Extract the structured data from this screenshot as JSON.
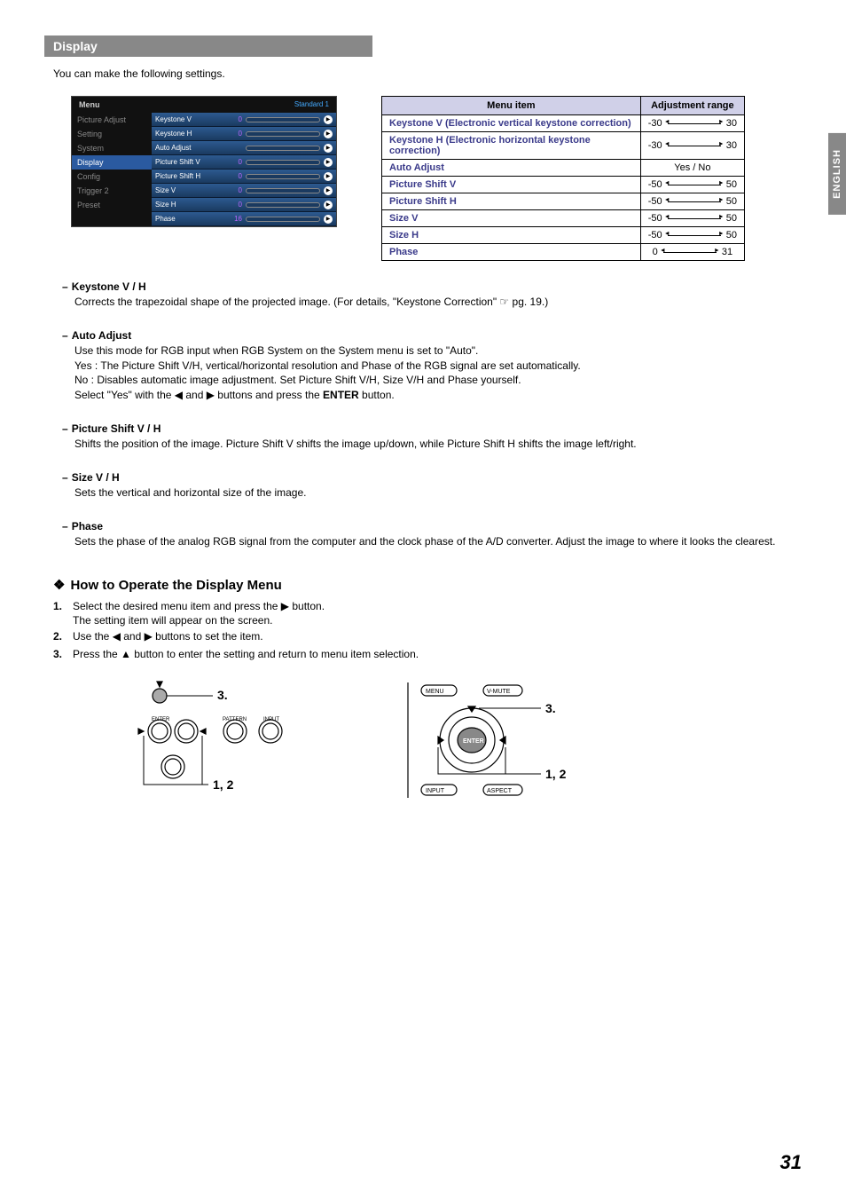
{
  "sideTab": "ENGLISH",
  "sectionTitle": "Display",
  "intro": "You can make the following settings.",
  "menuShot": {
    "title": "Menu",
    "mode": "Standard 1",
    "leftItems": [
      "Picture Adjust",
      "Setting",
      "System",
      "Display",
      "Config",
      "Trigger 2",
      "Preset"
    ],
    "activeIndex": 3,
    "rows": [
      {
        "label": "Keystone V",
        "val": "0"
      },
      {
        "label": "Keystone H",
        "val": "0"
      },
      {
        "label": "Auto Adjust",
        "val": ""
      },
      {
        "label": "Picture Shift V",
        "val": "0"
      },
      {
        "label": "Picture Shift H",
        "val": "0"
      },
      {
        "label": "Size V",
        "val": "0"
      },
      {
        "label": "Size H",
        "val": "0"
      },
      {
        "label": "Phase",
        "val": "16"
      }
    ]
  },
  "adjTable": {
    "headers": [
      "Menu item",
      "Adjustment range"
    ],
    "rows": [
      {
        "item": "Keystone V (Electronic vertical keystone correction)",
        "min": "-30",
        "max": "30",
        "type": "range"
      },
      {
        "item": "Keystone H (Electronic horizontal keystone correction)",
        "min": "-30",
        "max": "30",
        "type": "range"
      },
      {
        "item": "Auto Adjust",
        "text": "Yes / No",
        "type": "text"
      },
      {
        "item": "Picture Shift V",
        "min": "-50",
        "max": "50",
        "type": "range"
      },
      {
        "item": "Picture Shift H",
        "min": "-50",
        "max": "50",
        "type": "range"
      },
      {
        "item": "Size V",
        "min": "-50",
        "max": "50",
        "type": "range"
      },
      {
        "item": "Size H",
        "min": "-50",
        "max": "50",
        "type": "range"
      },
      {
        "item": "Phase",
        "min": "0",
        "max": "31",
        "type": "range"
      }
    ]
  },
  "descriptions": [
    {
      "title": "Keystone V / H",
      "body": "Corrects the trapezoidal shape of the projected image. (For details, \"Keystone Correction\" ☞ pg. 19.)"
    },
    {
      "title": "Auto Adjust",
      "body": "Use this mode for RGB input when RGB System on the System menu is set to \"Auto\".\nYes : The Picture Shift V/H, vertical/horizontal resolution and Phase of the RGB signal are set automatically.\nNo  : Disables automatic image adjustment. Set Picture Shift V/H, Size V/H and Phase yourself.\n Select \"Yes\" with the ◀ and ▶ buttons and press the ENTER button."
    },
    {
      "title": "Picture Shift V / H",
      "body": "Shifts the position of the image. Picture Shift V shifts the image up/down, while Picture Shift H shifts the image left/right."
    },
    {
      "title": "Size V / H",
      "body": "Sets the vertical and horizontal size of the image."
    },
    {
      "title": "Phase",
      "body": "Sets the phase of the analog RGB signal from the computer and the clock phase of the A/D converter. Adjust the image to where it looks the clearest."
    }
  ],
  "howto": {
    "heading": "How to Operate the Display Menu",
    "steps": [
      {
        "num": "1.",
        "text": "Select the desired menu item and press the ▶ button.",
        "sub": "The setting item will appear on the screen."
      },
      {
        "num": "2.",
        "text": "Use the ◀ and ▶ buttons to set the item."
      },
      {
        "num": "3.",
        "text": "Press the ▲ button to enter the setting and return to menu item selection."
      }
    ]
  },
  "diagLabels": {
    "step3": "3.",
    "step12": "1, 2",
    "enter": "ENTER",
    "pattern": "PATTERN",
    "input": "INPUT",
    "menu": "MENU",
    "vmute": "V-MUTE",
    "aspect": "ASPECT"
  },
  "pageNumber": "31",
  "colors": {
    "headerBg": "#888888",
    "tableHeadBg": "#d0d0e8",
    "itemColor": "#3a3a8a",
    "menuActive": "#2a5aa0",
    "menuRow": "#2d5a90"
  }
}
